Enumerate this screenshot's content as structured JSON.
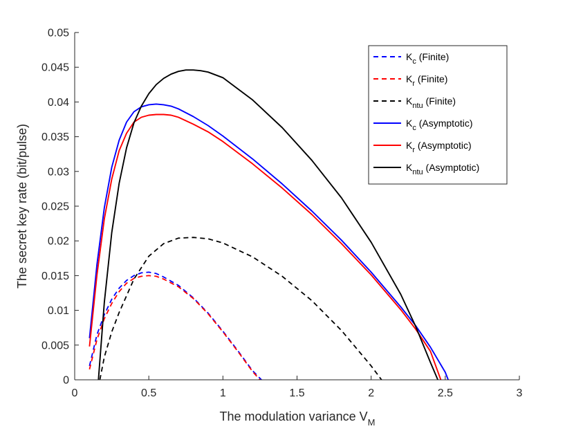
{
  "chart_data": {
    "type": "line",
    "title": "",
    "xlabel": "The modulation variance V",
    "xlabel_sub": "M",
    "ylabel": "The secret key rate (bit/pulse)",
    "xlim": [
      0,
      3
    ],
    "ylim": [
      0,
      0.05
    ],
    "x_ticks": [
      0,
      0.5,
      1,
      1.5,
      2,
      2.5,
      3
    ],
    "x_tick_labels": [
      "0",
      "0.5",
      "1",
      "1.5",
      "2",
      "2.5",
      "3"
    ],
    "y_ticks": [
      0,
      0.005,
      0.01,
      0.015,
      0.02,
      0.025,
      0.03,
      0.035,
      0.04,
      0.045,
      0.05
    ],
    "y_tick_labels": [
      "0",
      "0.005",
      "0.01",
      "0.015",
      "0.02",
      "0.025",
      "0.03",
      "0.035",
      "0.04",
      "0.045",
      "0.05"
    ],
    "grid": false,
    "legend_position": "top-right",
    "series": [
      {
        "name": "Kc (Finite)",
        "symbol": "K",
        "sub": "c",
        "suffix": " (Finite)",
        "color": "#0000ff",
        "dash": true,
        "x": [
          0.1,
          0.15,
          0.2,
          0.25,
          0.3,
          0.35,
          0.4,
          0.45,
          0.5,
          0.55,
          0.6,
          0.7,
          0.8,
          0.9,
          1.0,
          1.1,
          1.2,
          1.26
        ],
        "y": [
          0.002,
          0.0065,
          0.0094,
          0.0116,
          0.0132,
          0.0143,
          0.015,
          0.0154,
          0.0155,
          0.0153,
          0.0148,
          0.0136,
          0.0118,
          0.0096,
          0.007,
          0.0042,
          0.0013,
          0.0
        ]
      },
      {
        "name": "Kr (Finite)",
        "symbol": "K",
        "sub": "r",
        "suffix": " (Finite)",
        "color": "#ff0000",
        "dash": true,
        "x": [
          0.1,
          0.15,
          0.2,
          0.25,
          0.3,
          0.35,
          0.4,
          0.45,
          0.5,
          0.55,
          0.6,
          0.7,
          0.8,
          0.9,
          1.0,
          1.1,
          1.2,
          1.25
        ],
        "y": [
          0.0015,
          0.0058,
          0.0088,
          0.011,
          0.0127,
          0.0139,
          0.0146,
          0.0149,
          0.015,
          0.0149,
          0.0145,
          0.0134,
          0.0117,
          0.0095,
          0.0069,
          0.0041,
          0.0012,
          0.0
        ]
      },
      {
        "name": "Kntu (Finite)",
        "symbol": "K",
        "sub": "ntu",
        "suffix": " (Finite)",
        "color": "#000000",
        "dash": true,
        "x": [
          0.17,
          0.2,
          0.25,
          0.3,
          0.4,
          0.5,
          0.6,
          0.7,
          0.8,
          0.9,
          1.0,
          1.2,
          1.4,
          1.6,
          1.8,
          2.0,
          2.07
        ],
        "y": [
          0.0,
          0.0033,
          0.0069,
          0.0097,
          0.0145,
          0.0178,
          0.0196,
          0.0204,
          0.0205,
          0.0203,
          0.0197,
          0.0177,
          0.0149,
          0.0114,
          0.0071,
          0.002,
          0.0
        ]
      },
      {
        "name": "Kc (Asymptotic)",
        "symbol": "K",
        "sub": "c",
        "suffix": " (Asymptotic)",
        "color": "#0000ff",
        "dash": false,
        "x": [
          0.1,
          0.15,
          0.2,
          0.25,
          0.3,
          0.35,
          0.4,
          0.45,
          0.5,
          0.55,
          0.6,
          0.65,
          0.7,
          0.8,
          0.9,
          1.0,
          1.2,
          1.4,
          1.6,
          1.8,
          2.0,
          2.2,
          2.3,
          2.4,
          2.5,
          2.52
        ],
        "y": [
          0.006,
          0.0166,
          0.0248,
          0.0306,
          0.0345,
          0.0371,
          0.0386,
          0.0393,
          0.0396,
          0.0397,
          0.0396,
          0.0394,
          0.039,
          0.0379,
          0.0366,
          0.0351,
          0.0318,
          0.0282,
          0.0243,
          0.0201,
          0.0155,
          0.0105,
          0.0078,
          0.0047,
          0.0011,
          0.0
        ]
      },
      {
        "name": "Kr (Asymptotic)",
        "symbol": "K",
        "sub": "r",
        "suffix": " (Asymptotic)",
        "color": "#ff0000",
        "dash": false,
        "x": [
          0.1,
          0.15,
          0.2,
          0.25,
          0.3,
          0.35,
          0.4,
          0.45,
          0.5,
          0.55,
          0.6,
          0.65,
          0.7,
          0.8,
          0.9,
          1.0,
          1.2,
          1.4,
          1.6,
          1.8,
          2.0,
          2.2,
          2.3,
          2.4,
          2.47
        ],
        "y": [
          0.0048,
          0.0151,
          0.0232,
          0.0289,
          0.033,
          0.0355,
          0.0371,
          0.0378,
          0.0381,
          0.0382,
          0.0382,
          0.0381,
          0.0378,
          0.0368,
          0.0357,
          0.0343,
          0.0311,
          0.0276,
          0.0238,
          0.0196,
          0.0151,
          0.0101,
          0.0073,
          0.0041,
          0.0
        ]
      },
      {
        "name": "Kntu (Asymptotic)",
        "symbol": "K",
        "sub": "ntu",
        "suffix": " (Asymptotic)",
        "color": "#000000",
        "dash": false,
        "x": [
          0.16,
          0.2,
          0.25,
          0.3,
          0.35,
          0.4,
          0.45,
          0.5,
          0.55,
          0.6,
          0.65,
          0.7,
          0.75,
          0.8,
          0.85,
          0.9,
          1.0,
          1.2,
          1.4,
          1.6,
          1.8,
          2.0,
          2.2,
          2.3,
          2.4,
          2.45
        ],
        "y": [
          0.0,
          0.0112,
          0.0212,
          0.0283,
          0.0334,
          0.037,
          0.0394,
          0.0412,
          0.0425,
          0.0434,
          0.044,
          0.0444,
          0.0446,
          0.0446,
          0.0445,
          0.0443,
          0.0435,
          0.0403,
          0.0363,
          0.0316,
          0.0262,
          0.0198,
          0.0123,
          0.0077,
          0.0025,
          0.0
        ]
      }
    ]
  }
}
